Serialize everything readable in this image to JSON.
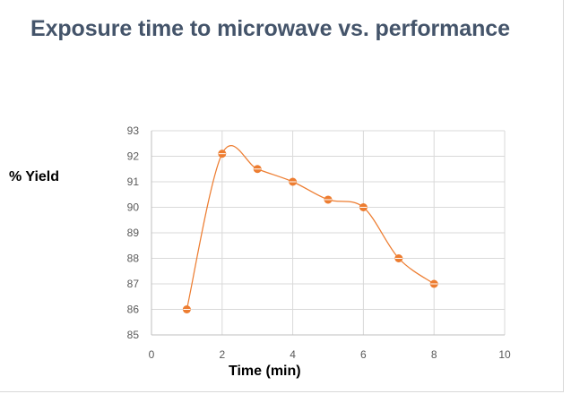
{
  "chart_data": {
    "type": "scatter",
    "title": "Exposure time to microwave vs. performance",
    "xlabel": "Time (min)",
    "ylabel": "% Yield",
    "xlim": [
      0,
      10
    ],
    "ylim": [
      85,
      93
    ],
    "xticks": [
      0,
      2,
      4,
      6,
      8,
      10
    ],
    "yticks": [
      85,
      86,
      87,
      88,
      89,
      90,
      91,
      92,
      93
    ],
    "grid": true,
    "smooth_line": true,
    "legend": "none",
    "series": [
      {
        "x": [
          1,
          2,
          3,
          4,
          5,
          6,
          7,
          8
        ],
        "y": [
          86,
          92.1,
          91.5,
          91,
          90.3,
          90,
          88,
          87
        ],
        "color": "#ed7d31"
      }
    ]
  }
}
